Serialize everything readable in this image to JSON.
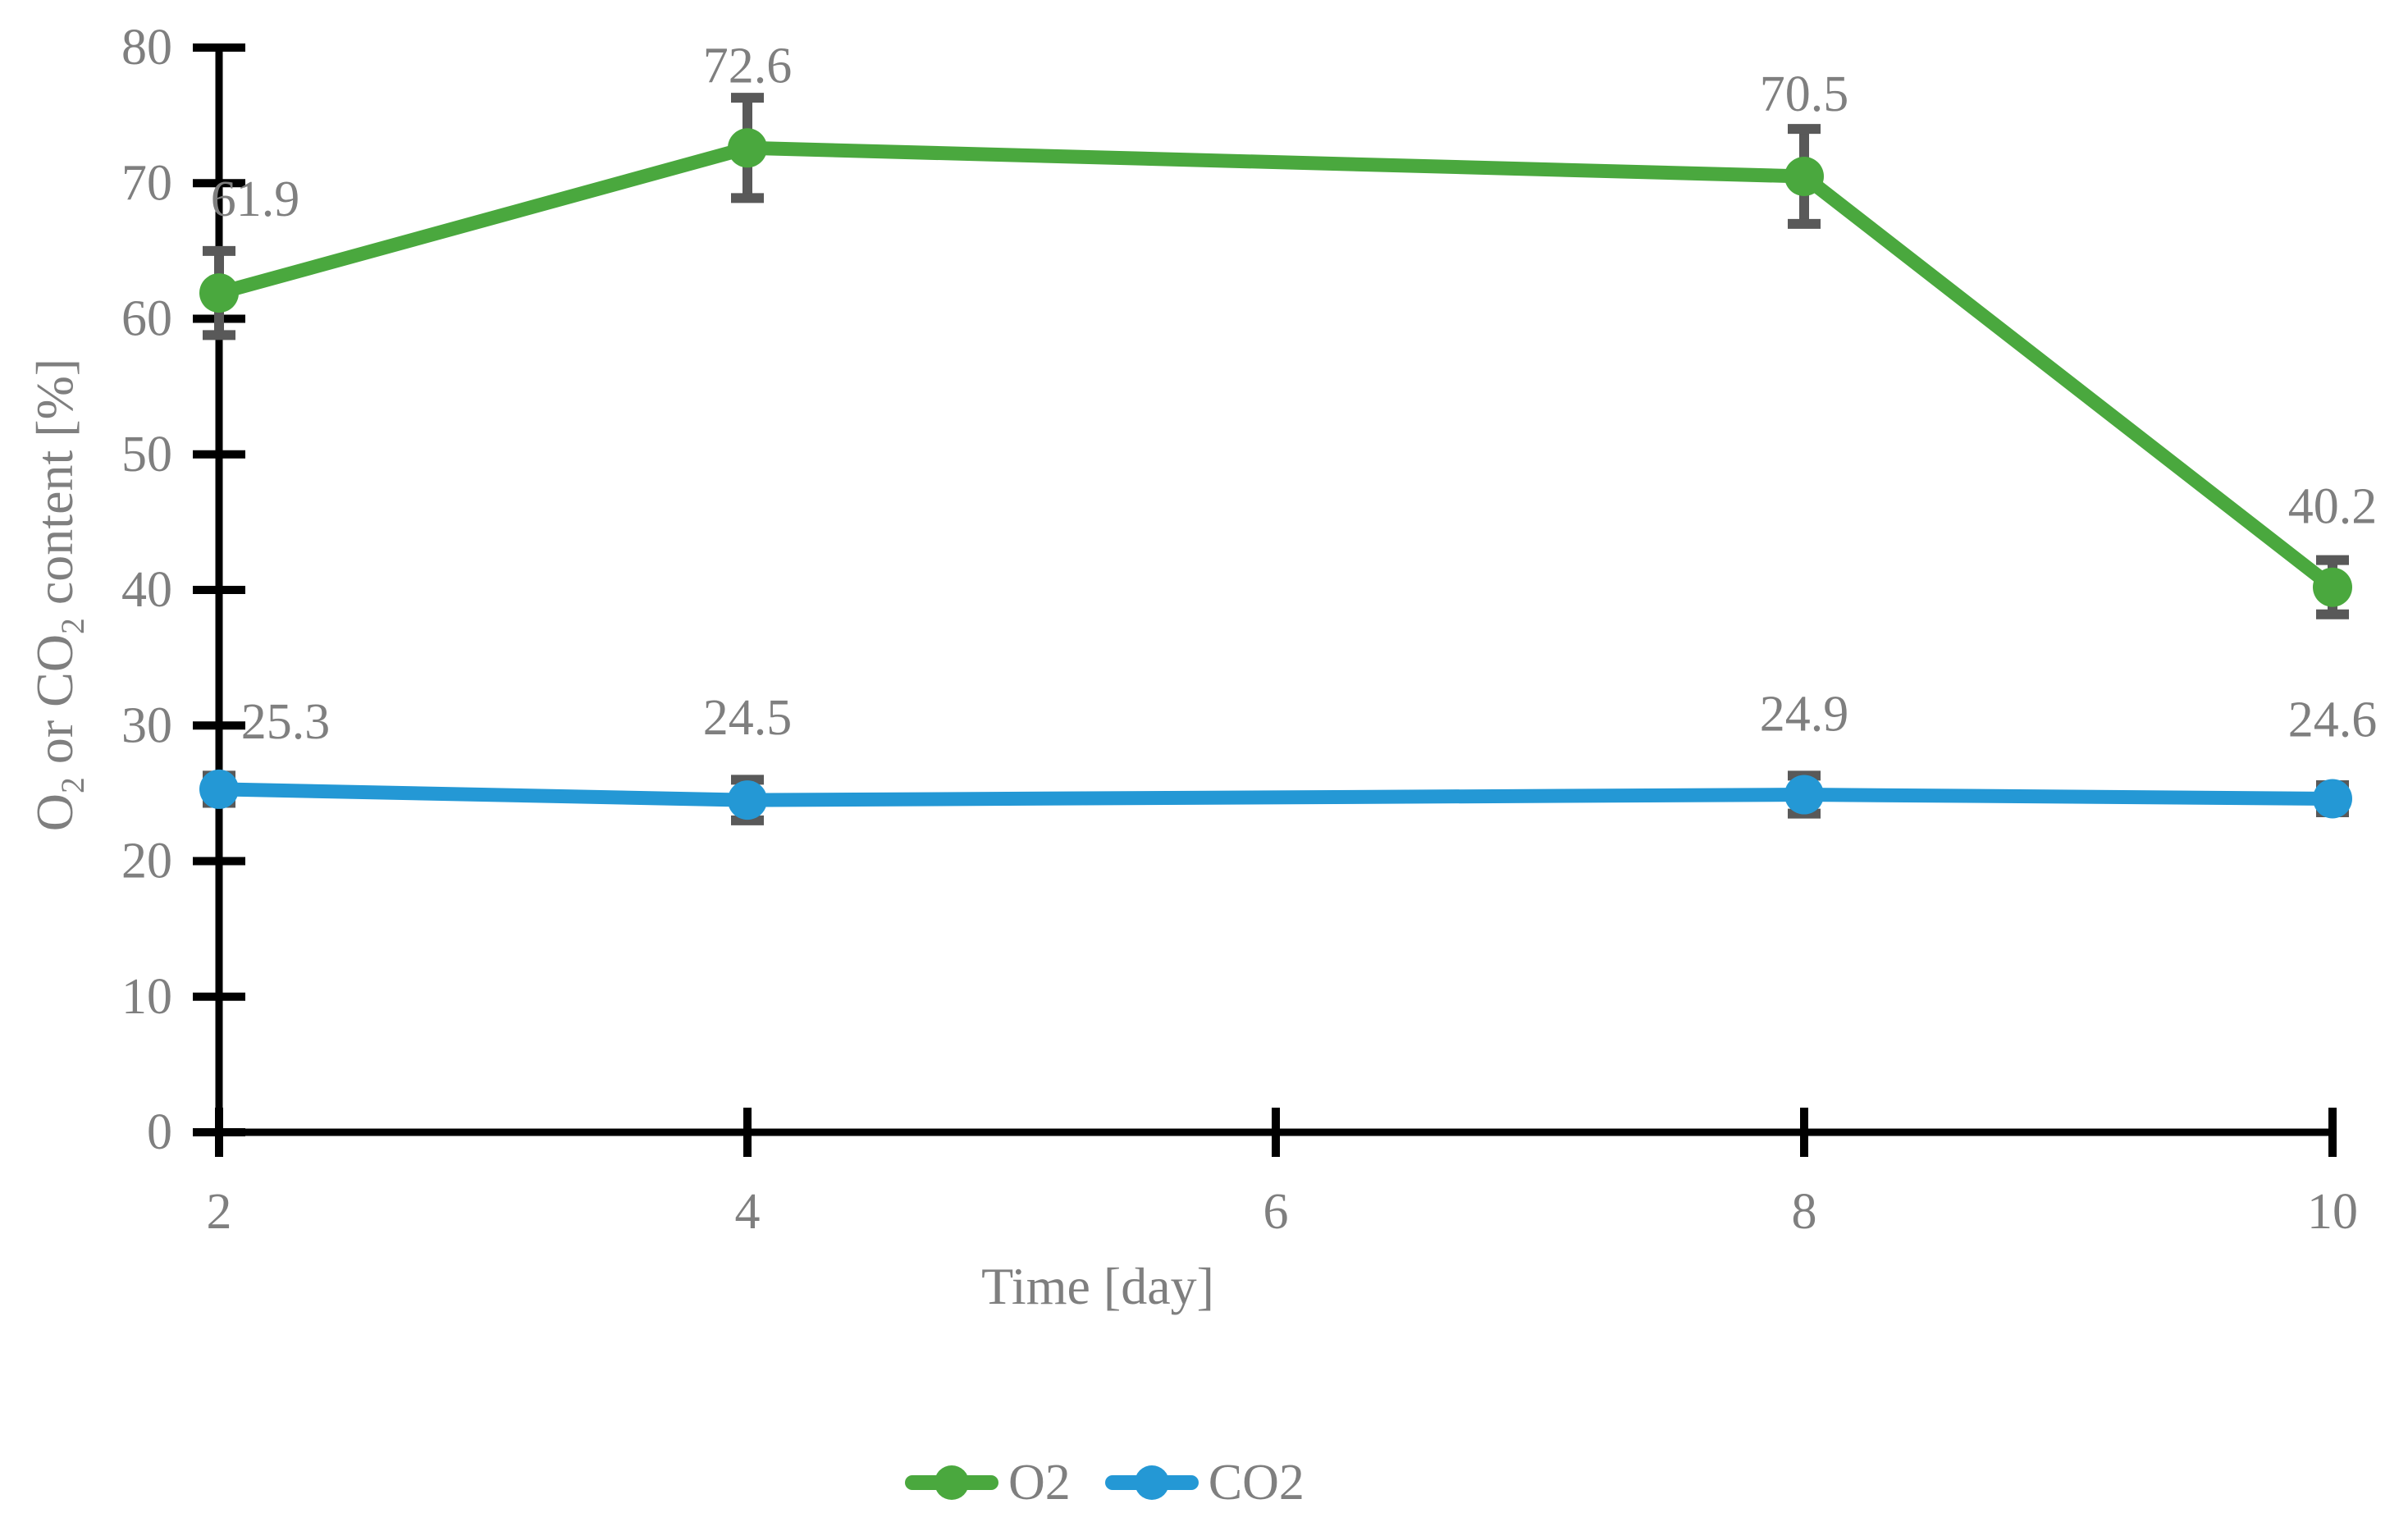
{
  "colors": {
    "background": "#ffffff",
    "axis": "#000000",
    "text_gray": "#7f7f7f",
    "error_bar": "#595959",
    "o2_green": "#4aa83e",
    "co2_blue": "#2498d5"
  },
  "chart_data": {
    "type": "line",
    "title": "",
    "xlabel": "Time [day]",
    "ylabel": "O2 or CO2 content [%]",
    "ylabel_parts": [
      {
        "text": "O",
        "sub": false
      },
      {
        "text": "2",
        "sub": true
      },
      {
        "text": " or CO",
        "sub": false
      },
      {
        "text": "2",
        "sub": true
      },
      {
        "text": " content [%]",
        "sub": false
      }
    ],
    "xlim": [
      2,
      10
    ],
    "ylim": [
      0,
      80
    ],
    "x_ticks": [
      2,
      4,
      6,
      8,
      10
    ],
    "y_ticks": [
      0,
      10,
      20,
      30,
      40,
      50,
      60,
      70,
      80
    ],
    "grid": false,
    "legend_position": "bottom",
    "series": [
      {
        "name": "O2",
        "color": "#4aa83e",
        "x": [
          2,
          4,
          8,
          10
        ],
        "values": [
          61.9,
          72.6,
          70.5,
          40.2
        ],
        "errors": [
          3.1,
          3.7,
          3.5,
          2.0
        ],
        "labels": [
          "61.9",
          "72.6",
          "70.5",
          "40.2"
        ],
        "label_offsets": [
          [
            44,
            -114
          ],
          [
            0,
            -100
          ],
          [
            0,
            -100
          ],
          [
            0,
            -98
          ]
        ]
      },
      {
        "name": "CO2",
        "color": "#2498d5",
        "x": [
          2,
          4,
          8,
          10
        ],
        "values": [
          25.3,
          24.5,
          24.9,
          24.6
        ],
        "errors": [
          1.0,
          1.5,
          1.4,
          1.0
        ],
        "labels": [
          "25.3",
          "24.5",
          "24.9",
          "24.6"
        ],
        "label_offsets": [
          [
            81,
            -82
          ],
          [
            0,
            -100
          ],
          [
            0,
            -98
          ],
          [
            0,
            -96
          ]
        ]
      }
    ]
  }
}
